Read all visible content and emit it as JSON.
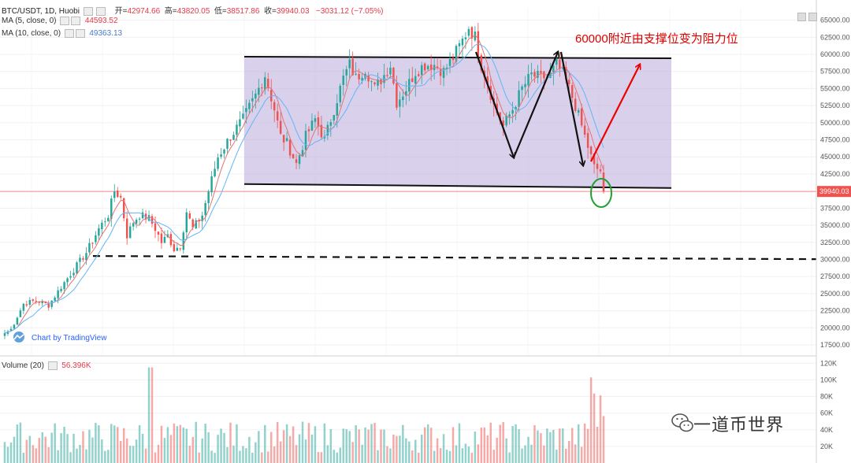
{
  "header": {
    "symbol": "BTC/USDT, 1D, Huobi",
    "open_label": "开=",
    "open": "42974.66",
    "high_label": "高=",
    "high": "43820.05",
    "low_label": "低=",
    "low": "38517.86",
    "close_label": "收=",
    "close": "39940.03",
    "change": "−3031.12 (−7.05%)"
  },
  "ma5": {
    "label": "MA (5, close, 0)",
    "value": "44593.52"
  },
  "ma10": {
    "label": "MA (10, close, 0)",
    "value": "49363.13"
  },
  "volume_legend": {
    "label": "Volume (20)",
    "value": "56.396K"
  },
  "annotation": "60000附近由支撑位变为阻力位",
  "credit": "Chart by TradingView",
  "watermark": "一道币世界",
  "colors": {
    "up": "#26a69a",
    "down": "#ef5350",
    "range_box": "#b9a9dd",
    "ma5": "#e57373",
    "ma10": "#64b5f6"
  },
  "chart_data": [
    {
      "type": "candlestick",
      "title": "BTC/USDT, 1D, Huobi",
      "y_axis_ticks": [
        "65000.00",
        "62500.00",
        "60000.00",
        "57500.00",
        "55000.00",
        "52500.00",
        "50000.00",
        "47500.00",
        "45000.00",
        "42500.00",
        "40000.00",
        "37500.00",
        "35000.00",
        "32500.00",
        "30000.00",
        "27500.00",
        "25000.00",
        "22500.00",
        "20000.00",
        "17500.00"
      ],
      "ylim": [
        16000,
        66800
      ],
      "last_price_label": "39940.03",
      "last_price": 39940.03,
      "support_level": 30500,
      "range_box": {
        "top": 60000,
        "bottom": 40800
      },
      "anchors": [
        [
          0,
          19200
        ],
        [
          2,
          19800
        ],
        [
          6,
          23500
        ],
        [
          10,
          24000
        ],
        [
          14,
          23300
        ],
        [
          18,
          26000
        ],
        [
          22,
          28500
        ],
        [
          26,
          31000
        ],
        [
          30,
          34500
        ],
        [
          33,
          36500
        ],
        [
          35,
          40000
        ],
        [
          37,
          39000
        ],
        [
          39,
          33500
        ],
        [
          41,
          35500
        ],
        [
          43,
          36500
        ],
        [
          46,
          36000
        ],
        [
          48,
          34500
        ],
        [
          50,
          32500
        ],
        [
          52,
          33500
        ],
        [
          54,
          31500
        ],
        [
          56,
          32000
        ],
        [
          58,
          37000
        ],
        [
          60,
          34500
        ],
        [
          63,
          36500
        ],
        [
          65,
          40000
        ],
        [
          68,
          45000
        ],
        [
          72,
          48000
        ],
        [
          76,
          50500
        ],
        [
          80,
          54000
        ],
        [
          83,
          57000
        ],
        [
          86,
          52000
        ],
        [
          88,
          48000
        ],
        [
          90,
          47000
        ],
        [
          93,
          44000
        ],
        [
          96,
          48000
        ],
        [
          99,
          50500
        ],
        [
          102,
          47500
        ],
        [
          105,
          52000
        ],
        [
          108,
          56500
        ],
        [
          110,
          58500
        ],
        [
          112,
          56500
        ],
        [
          115,
          58000
        ],
        [
          118,
          55000
        ],
        [
          121,
          57000
        ],
        [
          123,
          58500
        ],
        [
          125,
          53000
        ],
        [
          128,
          55000
        ],
        [
          131,
          57500
        ],
        [
          134,
          58500
        ],
        [
          137,
          58500
        ],
        [
          140,
          57500
        ],
        [
          143,
          59500
        ],
        [
          146,
          62000
        ],
        [
          148,
          64000
        ],
        [
          150,
          62500
        ],
        [
          152,
          58500
        ],
        [
          154,
          56000
        ],
        [
          156,
          52500
        ],
        [
          159,
          49500
        ],
        [
          162,
          52000
        ],
        [
          165,
          55000
        ],
        [
          168,
          57000
        ],
        [
          171,
          56500
        ],
        [
          174,
          57000
        ],
        [
          176,
          58500
        ],
        [
          178,
          57000
        ],
        [
          180,
          55000
        ],
        [
          182,
          52500
        ],
        [
          184,
          49500
        ],
        [
          186,
          46500
        ],
        [
          188,
          43500
        ],
        [
          190,
          42974
        ],
        [
          191,
          39940
        ]
      ],
      "ma_series": [
        {
          "name": "MA (5, close, 0)",
          "last": 44593.52
        },
        {
          "name": "MA (10, close, 0)",
          "last": 49363.13
        }
      ]
    },
    {
      "type": "bar",
      "title": "Volume (20)",
      "y_axis_ticks": [
        "120K",
        "100K",
        "80K",
        "60K",
        "40K",
        "20K"
      ],
      "ylim": [
        0,
        125000
      ],
      "last_value": 56396
    }
  ]
}
